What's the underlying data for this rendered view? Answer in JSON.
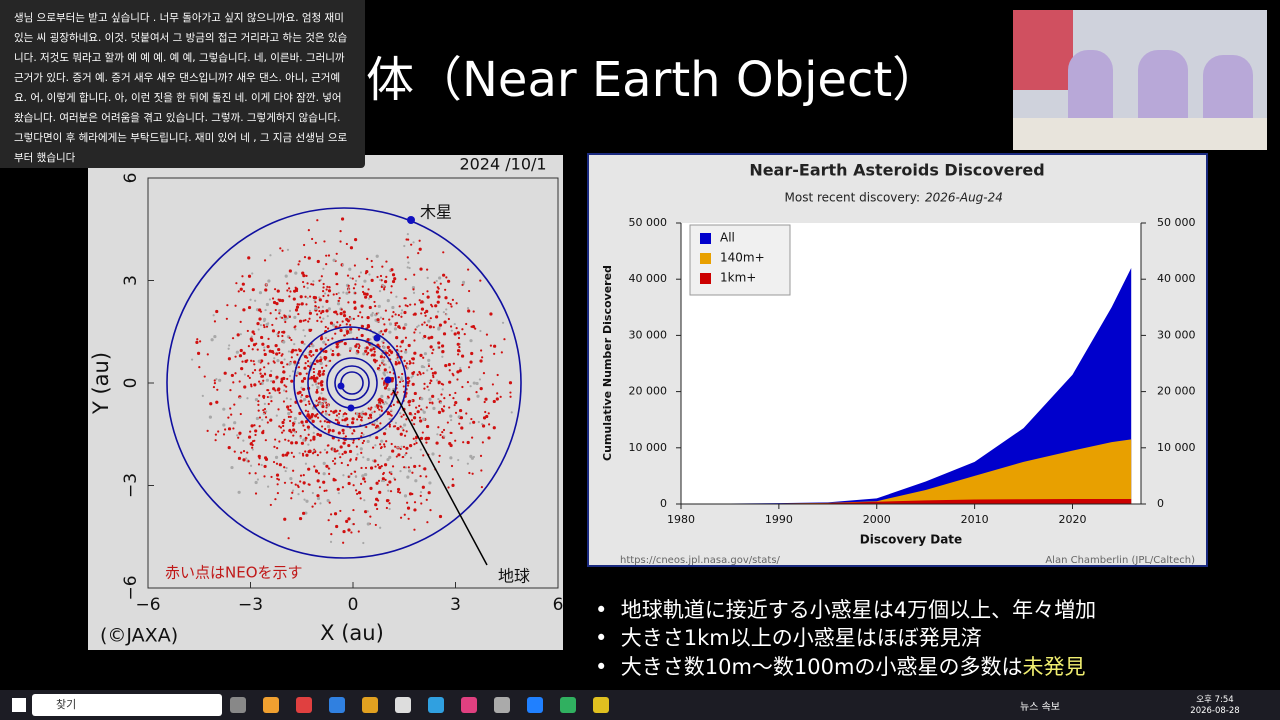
{
  "caption_popup": {
    "text": "생님 으로부터는 받고 싶습니다 . 너무 돌아가고 싶지 않으니까요. 엄청 재미있는 씨 굉장하네요. 이것. 덧붙여서 그 방금의 접근 거리라고 하는 것은 있습니다. 저것도 뭐라고 할까 예 예 예. 예 예, 그렇습니다. 네, 이른바. 그러니까 근거가 있다. 증거 예. 증거 새우 새우 댄스입니까? 새우 댄스. 아니, 근거예요. 어, 이렇게 합니다. 아, 이런 짓을 한 뒤에 돌진 네. 이게 다야 잠깐. 넣어 왔습니다. 여러분은 어려움을 겪고 있습니다. 그렇까. 그렇게하지 않습니다. 그렇다면이 후 헤라에게는 부탁드립니다. 재미 있어 네 , 그 지금 선생님 으로부터 했습니다"
  },
  "slide": {
    "title": "天体（Near Earth Object）",
    "bullets": [
      {
        "text": "地球軌道に接近する小惑星は4万個以上、年々増加"
      },
      {
        "text": "大きさ1km以上の小惑星はほぼ発見済"
      },
      {
        "text": "大きさ数10m～数100mの小惑星の多数は",
        "highlight": "未発見"
      }
    ]
  },
  "chart_data": [
    {
      "type": "orbit-map",
      "date": "2024 /10/1",
      "xlabel": "X (au)",
      "ylabel": "Y (au)",
      "annotations": [
        "木星",
        "地球",
        "赤い点はNEOを示す"
      ],
      "credit": "(©JAXA)",
      "xlim": [
        -6,
        6
      ],
      "ylim": [
        -6,
        6
      ],
      "xticks": [
        {
          "value": -6,
          "label": "−6"
        },
        {
          "value": -3,
          "label": "−3"
        },
        0,
        3,
        6
      ],
      "yticks": [
        {
          "value": -6,
          "label": "−6"
        },
        {
          "value": -3,
          "label": "−3"
        },
        0,
        3,
        6
      ]
    },
    {
      "type": "area",
      "title": "Near-Earth Asteroids Discovered",
      "subtitle": "Most recent discovery:",
      "subtitle_date": "2026-Aug-24",
      "xlabel": "Discovery Date",
      "ylabel": "Cumulative Number Discovered",
      "source": "https://cneos.jpl.nasa.gov/stats/",
      "credit": "Alan Chamberlin (JPL/Caltech)",
      "legend": "upper left",
      "x": [
        1980,
        1985,
        1990,
        1995,
        2000,
        2005,
        2010,
        2015,
        2020,
        2024,
        2026
      ],
      "series": [
        {
          "name": "All",
          "color": "#0000cc",
          "values": [
            50,
            100,
            150,
            300,
            1000,
            4000,
            7500,
            13500,
            23000,
            35000,
            42000
          ]
        },
        {
          "name": "140m+",
          "color": "#e8a000",
          "values": [
            30,
            60,
            100,
            200,
            500,
            2500,
            5000,
            7500,
            9500,
            11000,
            11500
          ]
        },
        {
          "name": "1km+",
          "color": "#cc0000",
          "values": [
            20,
            40,
            80,
            150,
            400,
            650,
            800,
            850,
            880,
            900,
            900
          ]
        }
      ],
      "xlim": [
        1980,
        2027
      ],
      "xticks": [
        1980,
        1990,
        2000,
        2010,
        2020
      ],
      "ylim": [
        0,
        50000
      ],
      "yticks": [
        0,
        {
          "value": 10000,
          "label": "10 000"
        },
        {
          "value": 20000,
          "label": "20 000"
        },
        {
          "value": 30000,
          "label": "30 000"
        },
        {
          "value": 40000,
          "label": "40 000"
        },
        {
          "value": 50000,
          "label": "50 000"
        }
      ],
      "y2lim": [
        0,
        50000
      ],
      "y2ticks": [
        0,
        {
          "value": 10000,
          "label": "10 000"
        },
        {
          "value": 20000,
          "label": "20 000"
        },
        {
          "value": 30000,
          "label": "30 000"
        },
        {
          "value": 40000,
          "label": "40 000"
        },
        {
          "value": 50000,
          "label": "50 000"
        }
      ]
    }
  ],
  "taskbar": {
    "search": "찾기",
    "news": "뉴스 속보",
    "time": "오후 7:54",
    "date": "2026-08-28"
  }
}
